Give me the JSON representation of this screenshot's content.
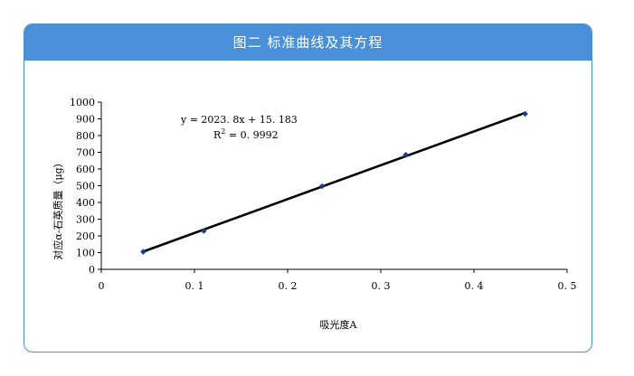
{
  "header": {
    "title": "图二  标准曲线及其方程"
  },
  "chart_data": {
    "type": "scatter",
    "title": "图二  标准曲线及其方程",
    "xlabel": "吸光度A",
    "ylabel": "对应α-石英质量（μg）",
    "xlim": [
      0,
      0.5
    ],
    "ylim": [
      0,
      1000
    ],
    "x_tick_labels": [
      "0",
      "0. 1",
      "0. 2",
      "0. 3",
      "0. 4",
      "0. 5"
    ],
    "y_tick_labels": [
      "0",
      "100",
      "200",
      "300",
      "400",
      "500",
      "600",
      "700",
      "800",
      "900",
      "1000"
    ],
    "series": [
      {
        "points": [
          {
            "x": 0.045,
            "y": 105
          },
          {
            "x": 0.11,
            "y": 230
          },
          {
            "x": 0.237,
            "y": 497
          },
          {
            "x": 0.327,
            "y": 685
          },
          {
            "x": 0.455,
            "y": 930
          }
        ]
      }
    ],
    "trendline": {
      "type": "linear",
      "slope": 2023.8,
      "intercept": 15.183,
      "x_range": [
        0.045,
        0.455
      ]
    },
    "annotations": {
      "equation": "y = 2023. 8x + 15. 183",
      "r2_prefix": "R",
      "r2_sup": "2",
      "r2_value": " = 0. 9992"
    },
    "grid": false,
    "legend": "none",
    "colors": {
      "header": "#4a90d9",
      "border": "#4a90d9",
      "line": "#000000",
      "marker": "#1f3a8a"
    }
  }
}
